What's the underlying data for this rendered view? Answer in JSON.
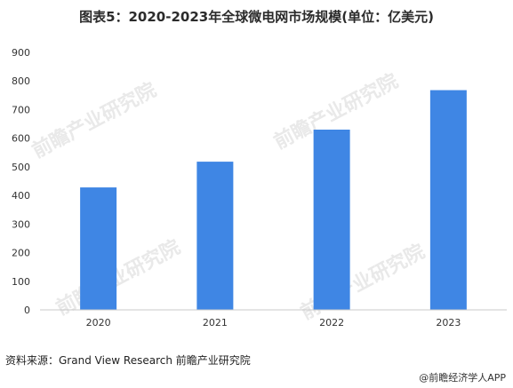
{
  "title": "图表5：2020-2023年全球微电网市场规模(单位：亿美元)",
  "source": "资料来源：Grand View Research 前瞻产业研究院",
  "footer": "@前瞻经济学人APP",
  "watermark": "前瞻产业研究院",
  "colors": {
    "bar": "#3f86e4",
    "axis": "#c8c8c8",
    "tick_text": "#333333"
  },
  "chart_data": {
    "type": "bar",
    "categories": [
      "2020",
      "2021",
      "2022",
      "2023"
    ],
    "values": [
      428,
      518,
      630,
      768
    ],
    "ylim": [
      0,
      900
    ],
    "yticks": [
      0,
      100,
      200,
      300,
      400,
      500,
      600,
      700,
      800,
      900
    ],
    "xlabel": "",
    "ylabel": "",
    "grid": false
  }
}
